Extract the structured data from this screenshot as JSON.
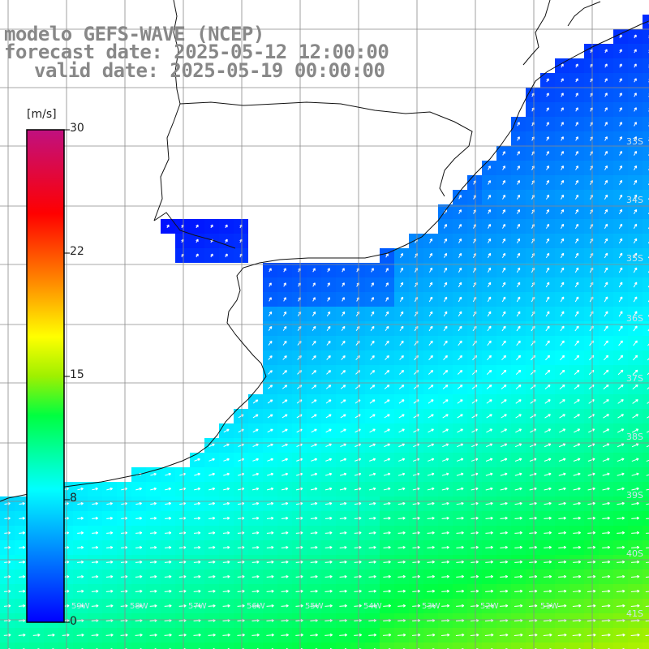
{
  "title": {
    "line1": "modelo GEFS-WAVE (NCEP)",
    "line2": "forecast date: 2025-05-12 12:00:00",
    "line3": "valid date: 2025-05-19 00:00:00"
  },
  "colorbar": {
    "units": "[m/s]",
    "min": 0,
    "max": 30,
    "ticks": [
      "30",
      "22",
      "15",
      "8",
      "0"
    ]
  },
  "map": {
    "lat_labels": [
      "33S",
      "34S",
      "35S",
      "36S",
      "37S",
      "38S",
      "39S",
      "40S",
      "41S"
    ],
    "lon_labels": [
      "59W",
      "58W",
      "57W",
      "56W",
      "55W",
      "54W",
      "53W",
      "52W",
      "51W"
    ],
    "colors": {
      "land": "#ffffff",
      "coast": "#111111",
      "grid": "#8a8a8a",
      "arrow": "#ffffff"
    }
  }
}
